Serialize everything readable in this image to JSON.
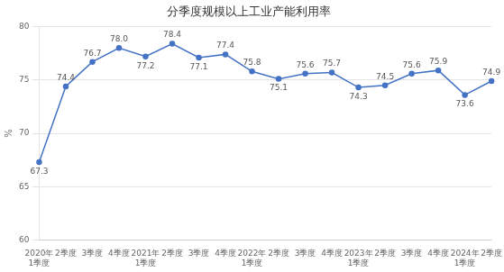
{
  "chart_data": {
    "type": "line",
    "title": "分季度规模以上工业产能利用率",
    "ylabel": "%",
    "categories": [
      "2020年\n1季度",
      "2季度",
      "3季度",
      "4季度",
      "2021年\n1季度",
      "2季度",
      "3季度",
      "4季度",
      "2022年\n1季度",
      "2季度",
      "3季度",
      "4季度",
      "2023年\n1季度",
      "2季度",
      "3季度",
      "4季度",
      "2024年\n1季度",
      "2季度"
    ],
    "values": [
      67.3,
      74.4,
      76.7,
      78.0,
      77.2,
      78.4,
      77.1,
      77.4,
      75.8,
      75.1,
      75.6,
      75.7,
      74.3,
      74.5,
      75.6,
      75.9,
      73.6,
      74.9
    ],
    "value_labels": [
      "67.3",
      "74.4",
      "76.7",
      "78.0",
      "77.2",
      "78.4",
      "77.1",
      "77.4",
      "75.8",
      "75.1",
      "75.6",
      "75.7",
      "74.3",
      "74.5",
      "75.6",
      "75.9",
      "73.6",
      "74.9"
    ],
    "color": "#4472C4",
    "marker": "circle",
    "ylim": [
      60,
      80
    ],
    "yticks": [
      60,
      65,
      70,
      75,
      80
    ],
    "grid": true,
    "data_labels": true
  }
}
